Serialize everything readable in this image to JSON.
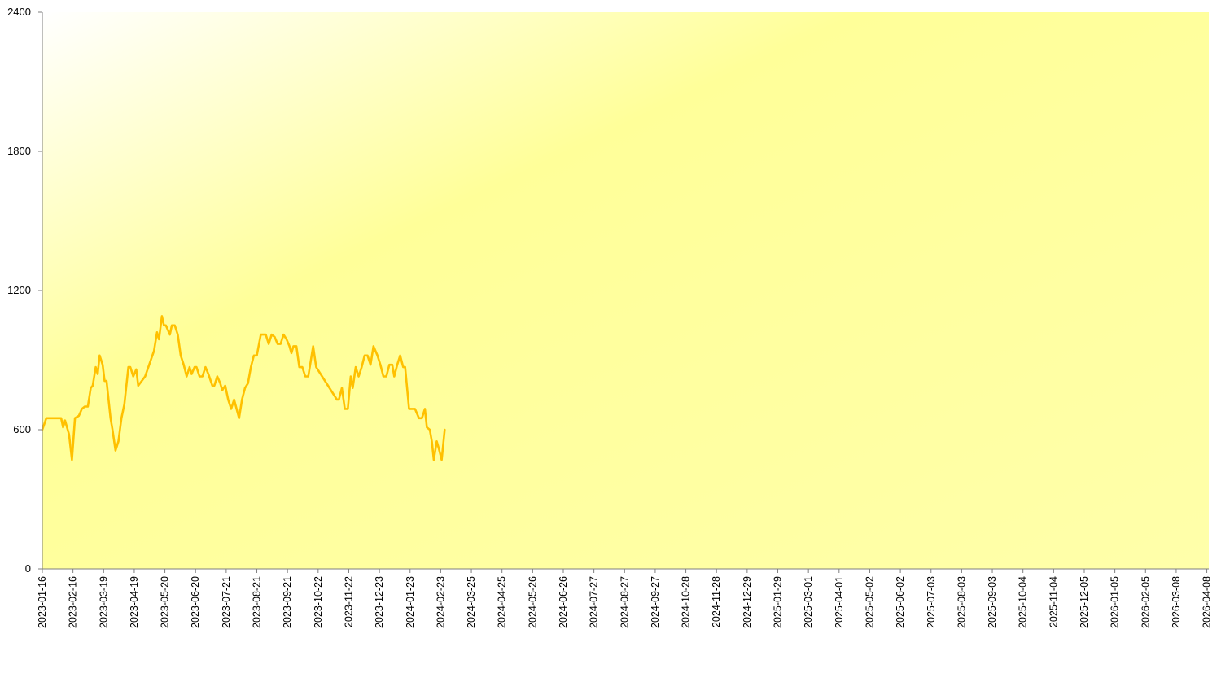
{
  "chart_data": {
    "type": "line",
    "title": "",
    "xlabel": "",
    "ylabel": "",
    "ylim": [
      0,
      2400
    ],
    "yticks": [
      0,
      600,
      1200,
      1800,
      2400
    ],
    "xlim": [
      "2023-01-16",
      "2026-04-10"
    ],
    "x_tick_labels": [
      "2023-01-16",
      "2023-02-16",
      "2023-03-19",
      "2023-04-19",
      "2023-05-20",
      "2023-06-20",
      "2023-07-21",
      "2023-08-21",
      "2023-09-21",
      "2023-10-22",
      "2023-11-22",
      "2023-12-23",
      "2024-01-23",
      "2024-02-23",
      "2024-03-25",
      "2024-04-25",
      "2024-05-26",
      "2024-06-26",
      "2024-07-27",
      "2024-08-27",
      "2024-09-27",
      "2024-10-28",
      "2024-11-28",
      "2024-12-29",
      "2025-01-29",
      "2025-03-01",
      "2025-04-01",
      "2025-05-02",
      "2025-06-02",
      "2025-07-03",
      "2025-08-03",
      "2025-09-03",
      "2025-10-04",
      "2025-11-04",
      "2025-12-05",
      "2026-01-05",
      "2026-02-05",
      "2026-03-08",
      "2026-04-08"
    ],
    "grid": false,
    "legend": "none",
    "background": {
      "gradient_from": "#ffffff",
      "gradient_mid": "#ffff99",
      "gradient_to": "#ffffaa"
    },
    "series": [
      {
        "color": "#ffc000",
        "style": "solid",
        "points": [
          [
            "2023-01-16",
            600
          ],
          [
            "2023-01-20",
            650
          ],
          [
            "2023-01-28",
            650
          ],
          [
            "2023-02-04",
            650
          ],
          [
            "2023-02-06",
            610
          ],
          [
            "2023-02-08",
            640
          ],
          [
            "2023-02-12",
            580
          ],
          [
            "2023-02-15",
            470
          ],
          [
            "2023-02-18",
            650
          ],
          [
            "2023-02-22",
            660
          ],
          [
            "2023-02-25",
            690
          ],
          [
            "2023-02-28",
            700
          ],
          [
            "2023-03-03",
            700
          ],
          [
            "2023-03-06",
            780
          ],
          [
            "2023-03-08",
            790
          ],
          [
            "2023-03-11",
            870
          ],
          [
            "2023-03-13",
            840
          ],
          [
            "2023-03-15",
            920
          ],
          [
            "2023-03-18",
            880
          ],
          [
            "2023-03-20",
            810
          ],
          [
            "2023-03-22",
            810
          ],
          [
            "2023-03-26",
            650
          ],
          [
            "2023-03-28",
            600
          ],
          [
            "2023-03-31",
            510
          ],
          [
            "2023-04-03",
            550
          ],
          [
            "2023-04-06",
            650
          ],
          [
            "2023-04-09",
            710
          ],
          [
            "2023-04-13",
            870
          ],
          [
            "2023-04-15",
            870
          ],
          [
            "2023-04-18",
            830
          ],
          [
            "2023-04-21",
            860
          ],
          [
            "2023-04-23",
            790
          ],
          [
            "2023-04-30",
            830
          ],
          [
            "2023-05-09",
            940
          ],
          [
            "2023-05-12",
            1020
          ],
          [
            "2023-05-14",
            990
          ],
          [
            "2023-05-17",
            1090
          ],
          [
            "2023-05-19",
            1050
          ],
          [
            "2023-05-21",
            1050
          ],
          [
            "2023-05-25",
            1010
          ],
          [
            "2023-05-27",
            1050
          ],
          [
            "2023-05-30",
            1050
          ],
          [
            "2023-06-02",
            1010
          ],
          [
            "2023-06-05",
            920
          ],
          [
            "2023-06-08",
            880
          ],
          [
            "2023-06-11",
            830
          ],
          [
            "2023-06-14",
            870
          ],
          [
            "2023-06-16",
            840
          ],
          [
            "2023-06-19",
            870
          ],
          [
            "2023-06-21",
            870
          ],
          [
            "2023-06-24",
            830
          ],
          [
            "2023-06-27",
            830
          ],
          [
            "2023-06-30",
            870
          ],
          [
            "2023-07-03",
            840
          ],
          [
            "2023-07-07",
            790
          ],
          [
            "2023-07-09",
            790
          ],
          [
            "2023-07-12",
            830
          ],
          [
            "2023-07-15",
            800
          ],
          [
            "2023-07-17",
            770
          ],
          [
            "2023-07-20",
            790
          ],
          [
            "2023-07-23",
            730
          ],
          [
            "2023-07-26",
            690
          ],
          [
            "2023-07-29",
            730
          ],
          [
            "2023-08-03",
            650
          ],
          [
            "2023-08-06",
            730
          ],
          [
            "2023-08-09",
            780
          ],
          [
            "2023-08-12",
            800
          ],
          [
            "2023-08-15",
            870
          ],
          [
            "2023-08-18",
            920
          ],
          [
            "2023-08-21",
            920
          ],
          [
            "2023-08-25",
            1010
          ],
          [
            "2023-08-30",
            1010
          ],
          [
            "2023-09-02",
            970
          ],
          [
            "2023-09-05",
            1010
          ],
          [
            "2023-09-08",
            1000
          ],
          [
            "2023-09-11",
            970
          ],
          [
            "2023-09-14",
            970
          ],
          [
            "2023-09-17",
            1010
          ],
          [
            "2023-09-20",
            990
          ],
          [
            "2023-09-23",
            960
          ],
          [
            "2023-09-25",
            930
          ],
          [
            "2023-09-27",
            960
          ],
          [
            "2023-09-30",
            960
          ],
          [
            "2023-10-03",
            870
          ],
          [
            "2023-10-06",
            870
          ],
          [
            "2023-10-09",
            830
          ],
          [
            "2023-10-12",
            830
          ],
          [
            "2023-10-17",
            960
          ],
          [
            "2023-10-20",
            870
          ],
          [
            "2023-11-10",
            730
          ],
          [
            "2023-11-12",
            730
          ],
          [
            "2023-11-15",
            780
          ],
          [
            "2023-11-18",
            690
          ],
          [
            "2023-11-21",
            690
          ],
          [
            "2023-11-24",
            830
          ],
          [
            "2023-11-26",
            780
          ],
          [
            "2023-11-29",
            870
          ],
          [
            "2023-12-02",
            830
          ],
          [
            "2023-12-05",
            870
          ],
          [
            "2023-12-08",
            920
          ],
          [
            "2023-12-11",
            920
          ],
          [
            "2023-12-14",
            880
          ],
          [
            "2023-12-17",
            960
          ],
          [
            "2023-12-21",
            920
          ],
          [
            "2023-12-24",
            880
          ],
          [
            "2023-12-27",
            830
          ],
          [
            "2023-12-30",
            830
          ],
          [
            "2024-01-02",
            880
          ],
          [
            "2024-01-05",
            880
          ],
          [
            "2024-01-07",
            830
          ],
          [
            "2024-01-10",
            880
          ],
          [
            "2024-01-13",
            920
          ],
          [
            "2024-01-16",
            870
          ],
          [
            "2024-01-18",
            870
          ],
          [
            "2024-01-22",
            690
          ],
          [
            "2024-01-28",
            690
          ],
          [
            "2024-02-01",
            650
          ],
          [
            "2024-02-04",
            650
          ],
          [
            "2024-02-07",
            690
          ],
          [
            "2024-02-09",
            610
          ],
          [
            "2024-02-12",
            600
          ],
          [
            "2024-02-14",
            550
          ],
          [
            "2024-02-16",
            470
          ],
          [
            "2024-02-19",
            550
          ],
          [
            "2024-02-21",
            520
          ],
          [
            "2024-02-24",
            470
          ],
          [
            "2024-02-27",
            600
          ]
        ]
      }
    ]
  }
}
